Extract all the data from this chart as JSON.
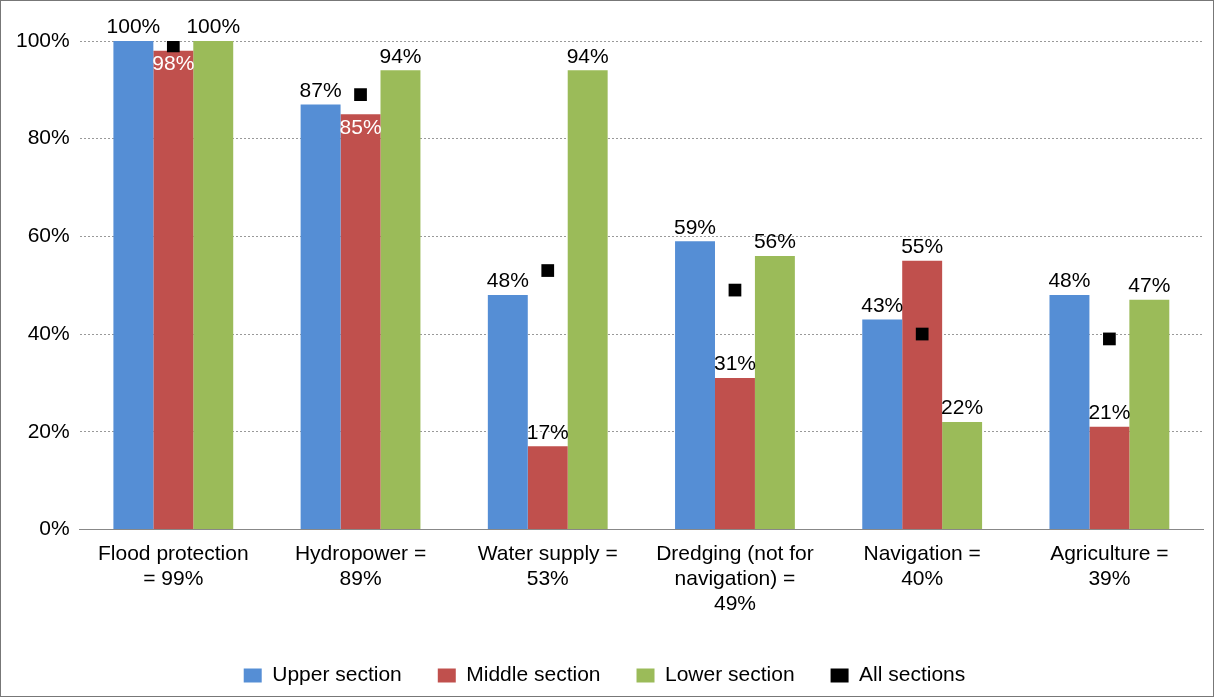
{
  "chart_data": {
    "type": "bar",
    "categories": [
      "Flood protection = 99%",
      "Hydropower = 89%",
      "Water supply = 53%",
      "Dredging (not for navigation) = 49%",
      "Navigation = 40%",
      "Agriculture = 39%"
    ],
    "series": [
      {
        "name": "Upper section",
        "color": "#558ed5",
        "values": [
          100,
          87,
          48,
          59,
          43,
          48
        ],
        "value_labels": [
          "100%",
          "87%",
          "48%",
          "59%",
          "43%",
          "48%"
        ]
      },
      {
        "name": "Middle section",
        "color": "#c0504d",
        "values": [
          98,
          85,
          17,
          31,
          55,
          21
        ],
        "value_labels": [
          "98%",
          "85%",
          "17%",
          "31%",
          "55%",
          "21%"
        ]
      },
      {
        "name": "Lower section",
        "color": "#9bbb59",
        "values": [
          100,
          94,
          94,
          56,
          22,
          47
        ],
        "value_labels": [
          "100%",
          "94%",
          "94%",
          "56%",
          "22%",
          "47%"
        ]
      },
      {
        "name": "All sections",
        "type": "scatter",
        "marker": "square",
        "color": "#000000",
        "values": [
          99,
          89,
          53,
          49,
          40,
          39
        ]
      }
    ],
    "ylim": [
      0,
      100
    ],
    "yticks": [
      {
        "value": 0,
        "label": "0%"
      },
      {
        "value": 20,
        "label": "20%"
      },
      {
        "value": 40,
        "label": "40%"
      },
      {
        "value": 60,
        "label": "60%"
      },
      {
        "value": 80,
        "label": "80%"
      },
      {
        "value": 100,
        "label": "100%"
      }
    ],
    "grid": "y",
    "legend": "bottom"
  }
}
